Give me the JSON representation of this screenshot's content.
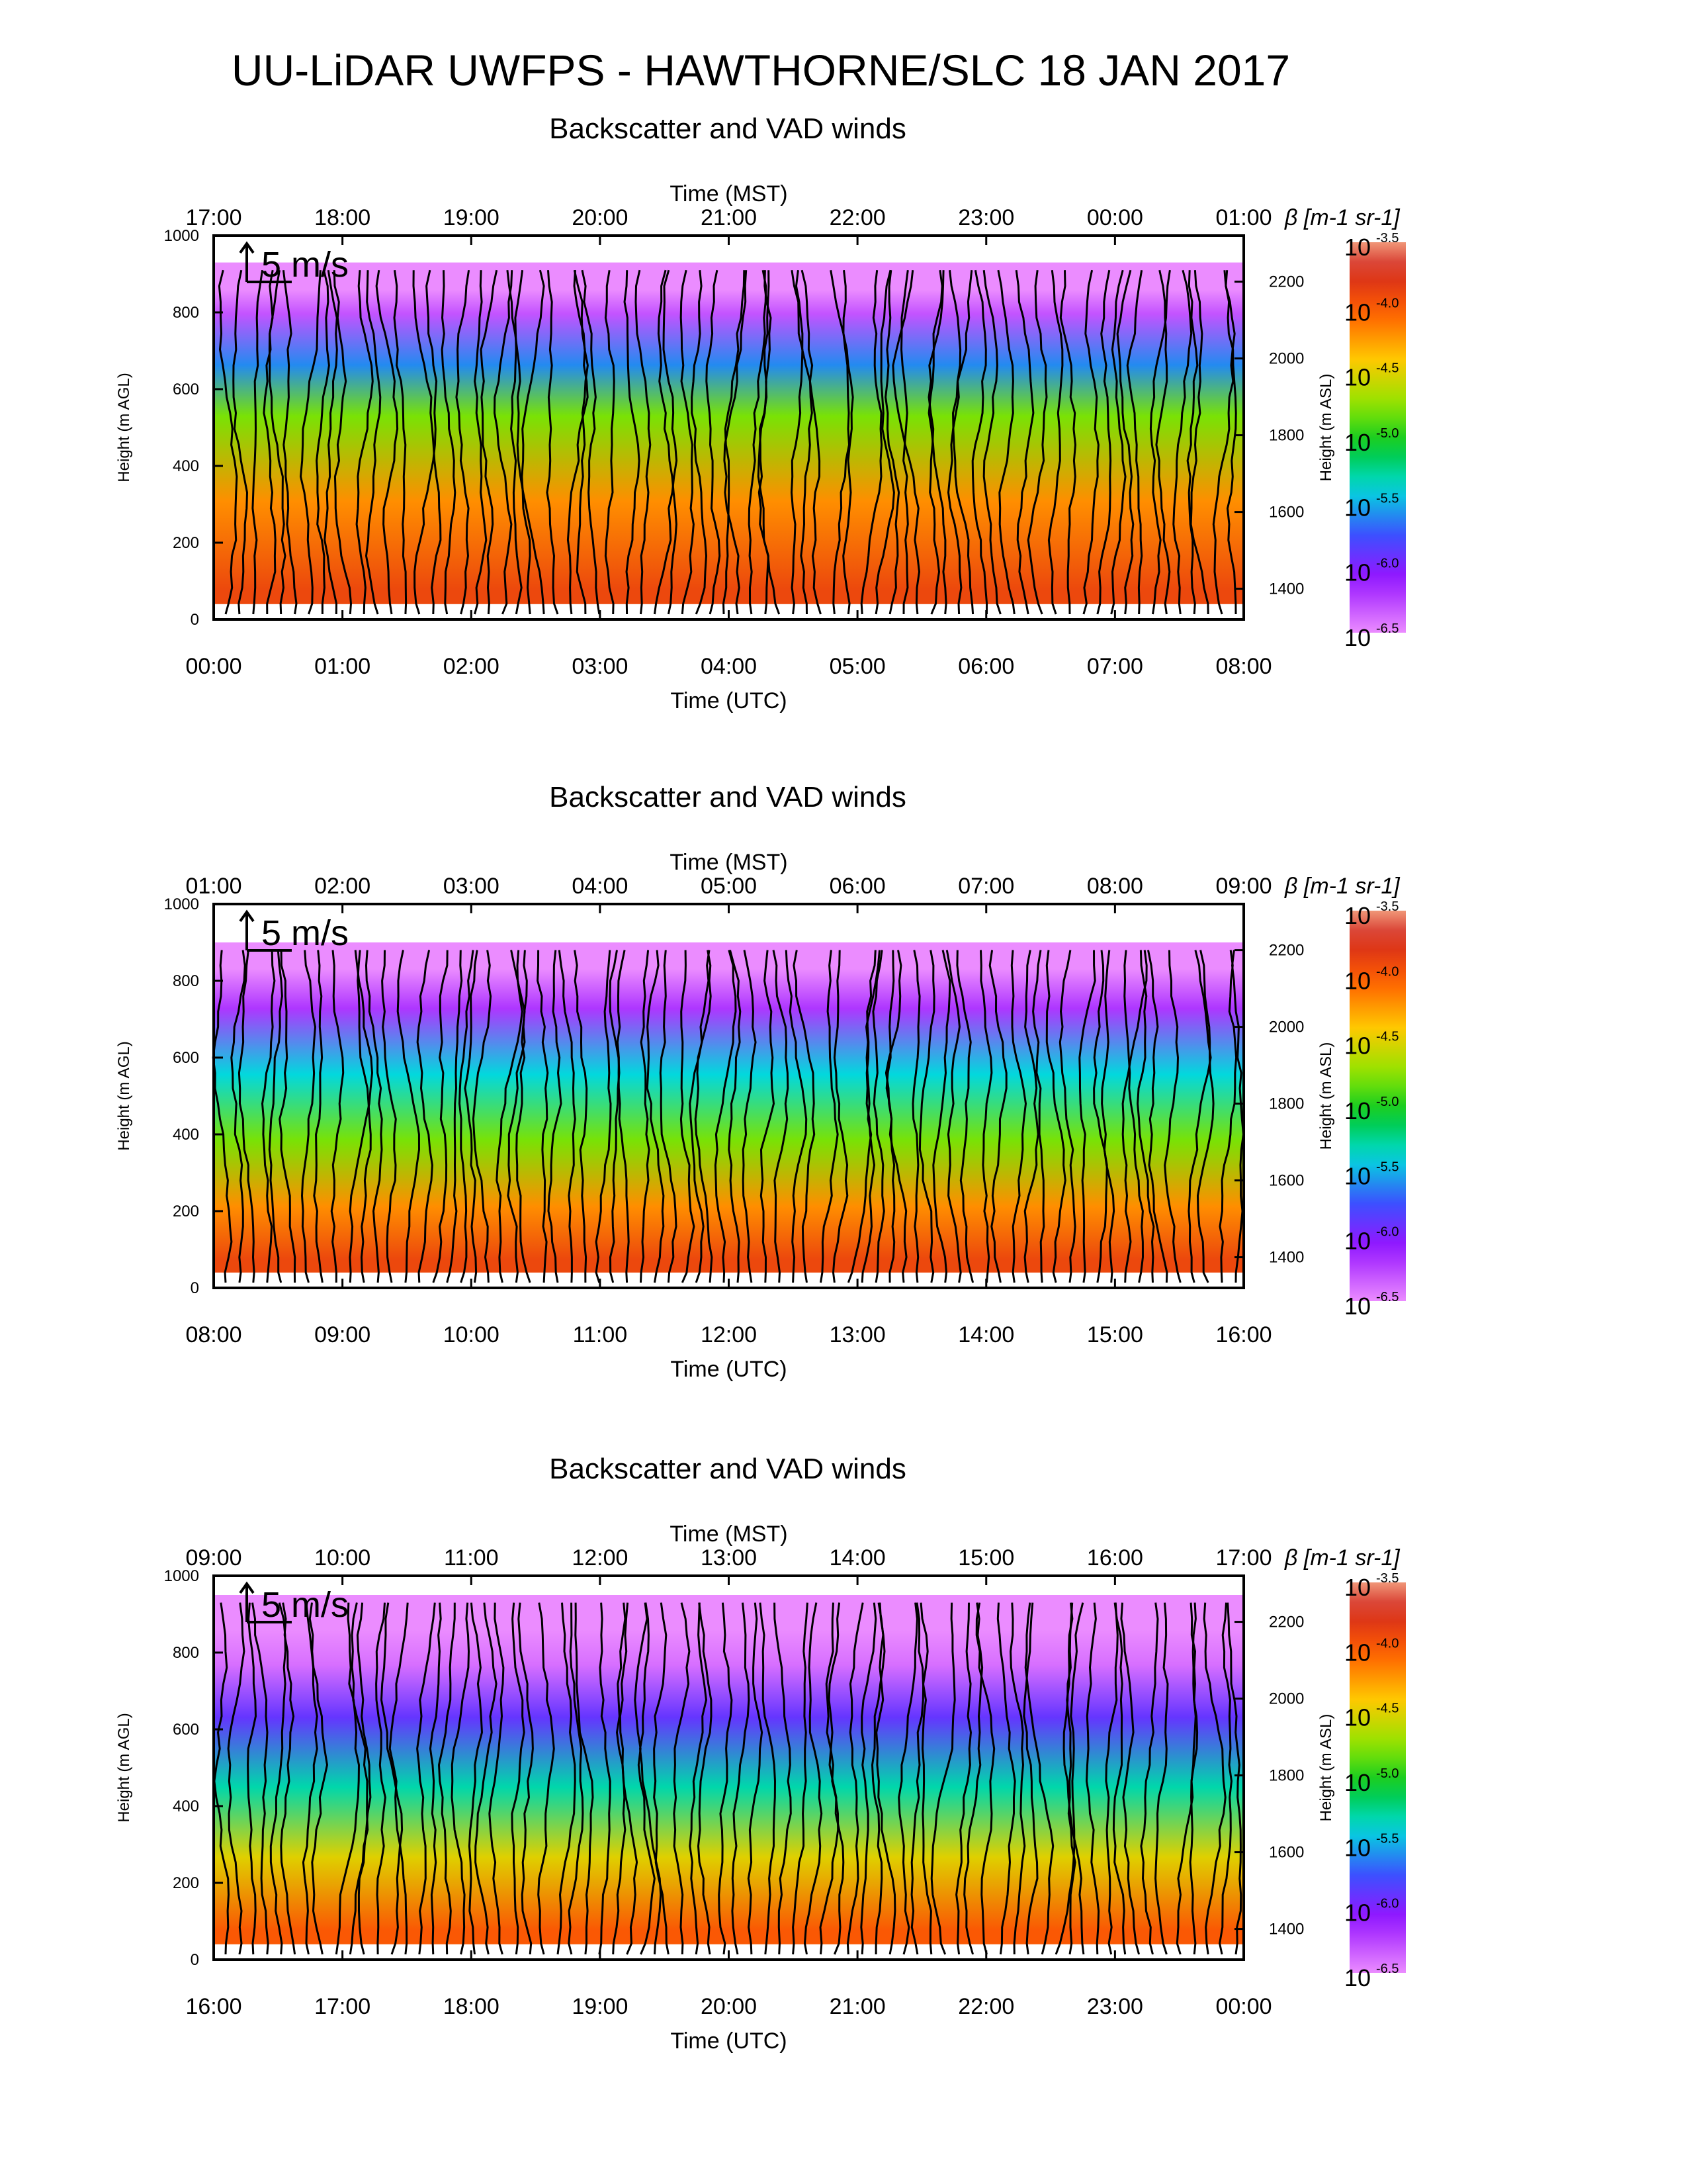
{
  "page_title": "UU-LiDAR UWFPS - HAWTHORNE/SLC 18 JAN 2017",
  "chart_data": [
    {
      "type": "heatmap",
      "title": "Backscatter and VAD winds",
      "top_xlabel": "Time (MST)",
      "top_ticks": [
        "17:00",
        "18:00",
        "19:00",
        "20:00",
        "21:00",
        "22:00",
        "23:00",
        "00:00",
        "01:00"
      ],
      "xlabel": "Time (UTC)",
      "bottom_ticks": [
        "00:00",
        "01:00",
        "02:00",
        "03:00",
        "04:00",
        "05:00",
        "06:00",
        "07:00",
        "08:00"
      ],
      "ylabel": "Height (m AGL)",
      "ylim": [
        0,
        1000
      ],
      "y_ticks": [
        "0",
        "200",
        "400",
        "600",
        "800",
        "1000"
      ],
      "y2label": "Height (m ASL)",
      "y2_ticks": [
        "1400",
        "1600",
        "1800",
        "2000",
        "2200"
      ],
      "wind_scale_label": "5 m/s",
      "colorbar_label": "β [m-1 sr-1]",
      "colorbar_exponents": [
        "-3.5",
        "-4.0",
        "-4.5",
        "-5.0",
        "-5.5",
        "-6.0",
        "-6.5"
      ],
      "colorbar_base": "10",
      "profile": [
        [
          40,
          -3.9
        ],
        [
          300,
          -4.2
        ],
        [
          550,
          -4.8
        ],
        [
          700,
          -5.6
        ],
        [
          850,
          -6.3
        ],
        [
          920,
          -6.5
        ]
      ],
      "top_edge": 0.93,
      "grid": false
    },
    {
      "type": "heatmap",
      "title": "Backscatter and VAD winds",
      "top_xlabel": "Time (MST)",
      "top_ticks": [
        "01:00",
        "02:00",
        "03:00",
        "04:00",
        "05:00",
        "06:00",
        "07:00",
        "08:00",
        "09:00"
      ],
      "xlabel": "Time (UTC)",
      "bottom_ticks": [
        "08:00",
        "09:00",
        "10:00",
        "11:00",
        "12:00",
        "13:00",
        "14:00",
        "15:00",
        "16:00"
      ],
      "ylabel": "Height (m AGL)",
      "ylim": [
        0,
        1000
      ],
      "y_ticks": [
        "0",
        "200",
        "400",
        "600",
        "800",
        "1000"
      ],
      "y2label": "Height (m ASL)",
      "y2_ticks": [
        "1400",
        "1600",
        "1800",
        "2000",
        "2200"
      ],
      "wind_scale_label": "5 m/s",
      "colorbar_label": "β [m-1 sr-1]",
      "colorbar_exponents": [
        "-3.5",
        "-4.0",
        "-4.5",
        "-5.0",
        "-5.5",
        "-6.0",
        "-6.5"
      ],
      "colorbar_base": "10",
      "profile": [
        [
          40,
          -3.9
        ],
        [
          200,
          -4.2
        ],
        [
          400,
          -4.8
        ],
        [
          600,
          -5.4
        ],
        [
          800,
          -6.2
        ],
        [
          920,
          -6.5
        ]
      ],
      "top_edge": 0.9,
      "grid": false
    },
    {
      "type": "heatmap",
      "title": "Backscatter and VAD winds",
      "top_xlabel": "Time (MST)",
      "top_ticks": [
        "09:00",
        "10:00",
        "11:00",
        "12:00",
        "13:00",
        "14:00",
        "15:00",
        "16:00",
        "17:00"
      ],
      "xlabel": "Time (UTC)",
      "bottom_ticks": [
        "16:00",
        "17:00",
        "18:00",
        "19:00",
        "20:00",
        "21:00",
        "22:00",
        "23:00",
        "00:00"
      ],
      "ylabel": "Height (m AGL)",
      "ylim": [
        0,
        1000
      ],
      "y_ticks": [
        "0",
        "200",
        "400",
        "600",
        "800",
        "1000"
      ],
      "y2label": "Height (m ASL)",
      "y2_ticks": [
        "1400",
        "1600",
        "1800",
        "2000",
        "2200"
      ],
      "wind_scale_label": "5 m/s",
      "colorbar_label": "β [m-1 sr-1]",
      "colorbar_exponents": [
        "-3.5",
        "-4.0",
        "-4.5",
        "-5.0",
        "-5.5",
        "-6.0",
        "-6.5"
      ],
      "colorbar_base": "10",
      "profile": [
        [
          40,
          -4.0
        ],
        [
          250,
          -4.5
        ],
        [
          450,
          -5.3
        ],
        [
          650,
          -5.9
        ],
        [
          800,
          -6.4
        ],
        [
          900,
          -6.5
        ]
      ],
      "top_edge": 0.95,
      "grid": false
    }
  ]
}
